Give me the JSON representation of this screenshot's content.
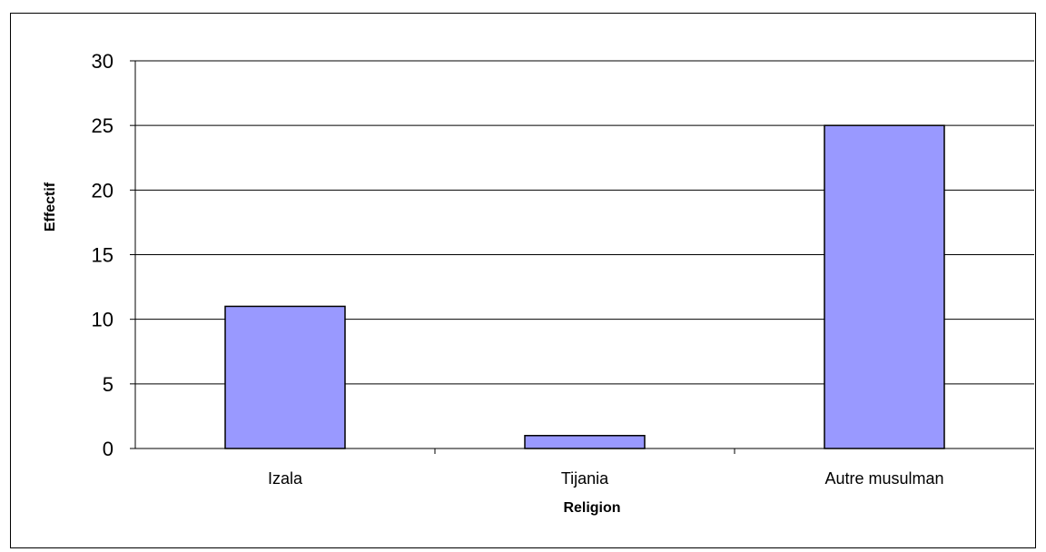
{
  "chart_data": {
    "type": "bar",
    "categories": [
      "Izala",
      "Tijania",
      "Autre musulman"
    ],
    "values": [
      11,
      1,
      25
    ],
    "xlabel": "Religion",
    "ylabel": "Effectif",
    "ylim": [
      0,
      30
    ],
    "yticks": [
      0,
      5,
      10,
      15,
      20,
      25,
      30
    ],
    "grid": true,
    "legend": "none",
    "bar_color": "#9999FF",
    "bar_edge_color": "#000000"
  }
}
